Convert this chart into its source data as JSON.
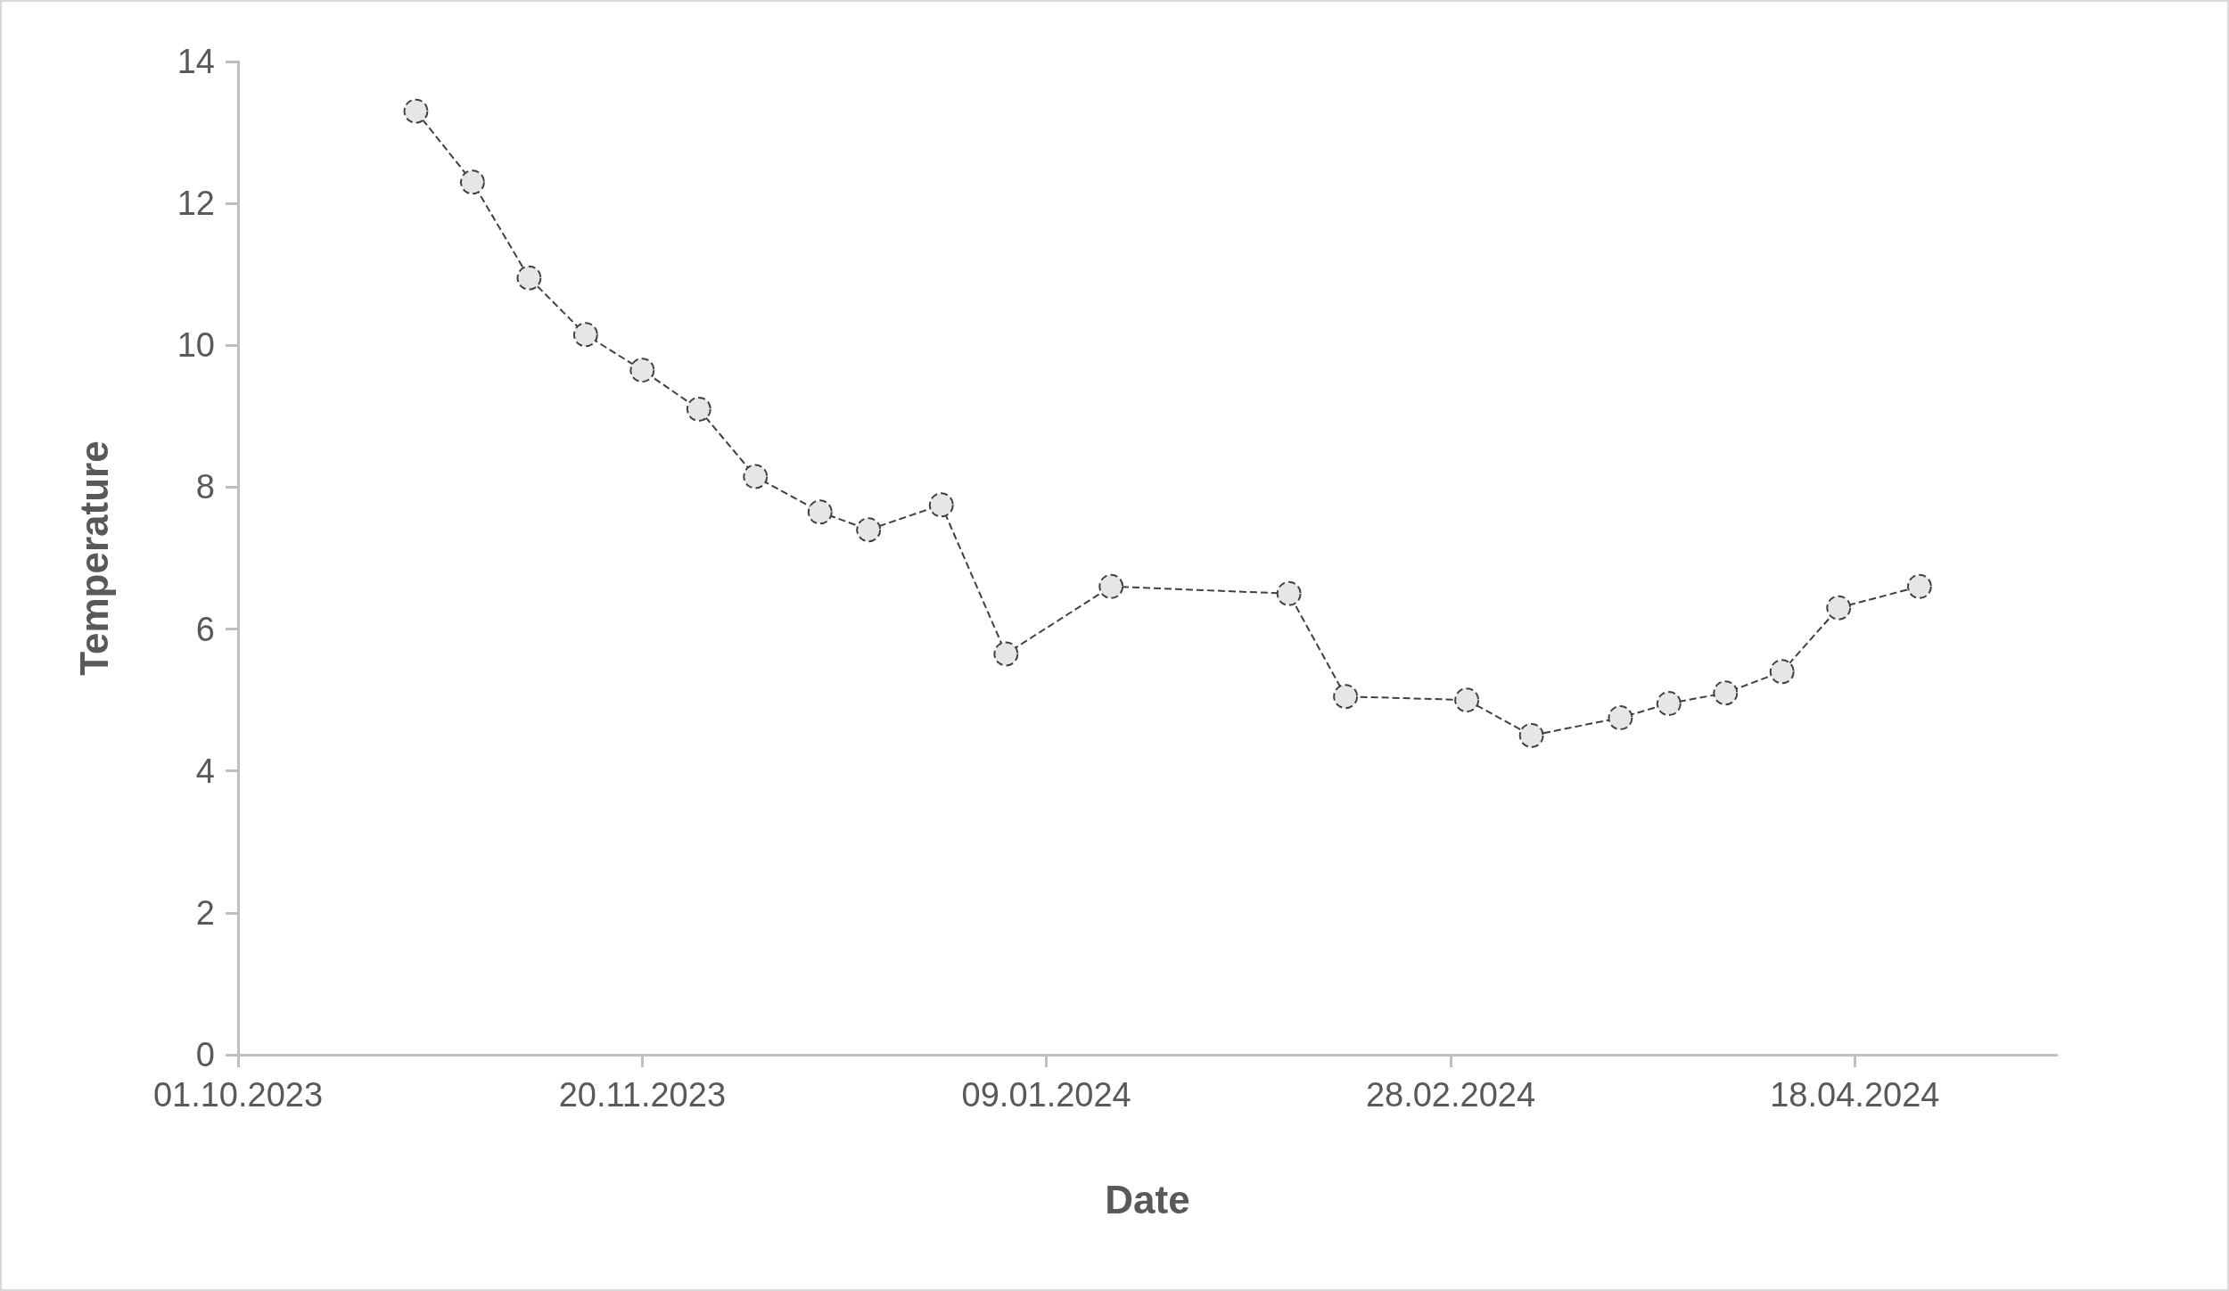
{
  "chart_data": {
    "type": "line",
    "xlabel": "Date",
    "ylabel": "Temperature",
    "x": [
      "2023-10-23",
      "2023-10-30",
      "2023-11-06",
      "2023-11-13",
      "2023-11-20",
      "2023-11-27",
      "2023-12-04",
      "2023-12-12",
      "2023-12-18",
      "2023-12-27",
      "2024-01-04",
      "2024-01-17",
      "2024-02-08",
      "2024-02-15",
      "2024-03-01",
      "2024-03-09",
      "2024-03-20",
      "2024-03-26",
      "2024-04-02",
      "2024-04-09",
      "2024-04-16",
      "2024-04-26"
    ],
    "series": [
      {
        "color": "#404040",
        "values": [
          13.3,
          12.3,
          10.95,
          10.15,
          9.65,
          9.1,
          8.15,
          7.65,
          7.4,
          7.75,
          5.65,
          6.6,
          6.5,
          5.05,
          5.0,
          4.5,
          4.75,
          4.95,
          5.1,
          5.4,
          6.3,
          6.6
        ]
      }
    ],
    "xlim": [
      "2023-10-01",
      "2024-05-13"
    ],
    "xticks": [
      {
        "value": "2023-10-01",
        "label": "01.10.2023"
      },
      {
        "value": "2023-11-20",
        "label": "20.11.2023"
      },
      {
        "value": "2024-01-09",
        "label": "09.01.2024"
      },
      {
        "value": "2024-02-28",
        "label": "28.02.2024"
      },
      {
        "value": "2024-04-18",
        "label": "18.04.2024"
      }
    ],
    "ylim": [
      0,
      14
    ],
    "yticks": [
      0,
      2,
      4,
      6,
      8,
      10,
      12,
      14
    ],
    "grid": false,
    "marker": "circle",
    "line_style": "dashed"
  }
}
